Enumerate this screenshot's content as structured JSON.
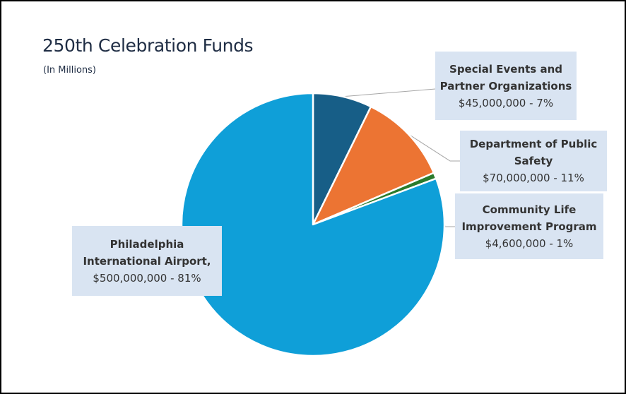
{
  "chart_data": {
    "type": "pie",
    "title": "250th Celebration Funds",
    "subtitle": "(In Millions)",
    "slices": [
      {
        "name": "Special Events and Partner Organizations",
        "value": 45000000,
        "value_label": "$45,000,000 - 7%",
        "color": "#175e87"
      },
      {
        "name": "Department of Public Safety",
        "value": 70000000,
        "value_label": "$70,000,000 - 11%",
        "color": "#ec7433"
      },
      {
        "name": "Community Life Improvement Program",
        "value": 4600000,
        "value_label": "$4,600,000  -  1%",
        "color": "#2a7b2c"
      },
      {
        "name": "Philadelphia International Airport,",
        "value": 500000000,
        "value_label": "$500,000,000  - 81%",
        "color": "#0f9fd8"
      }
    ],
    "label_box_color": "#d9e4f2",
    "leader_line_color": "#a6a6a6",
    "slice_border_color": "#ffffff"
  },
  "labels": {
    "0": {
      "name": "Special Events and\nPartner Organizations"
    },
    "1": {
      "name": "Department of Public\nSafety"
    },
    "2": {
      "name": "Community Life\nImprovement Program"
    },
    "3": {
      "name": "Philadelphia\nInternational Airport,"
    }
  }
}
